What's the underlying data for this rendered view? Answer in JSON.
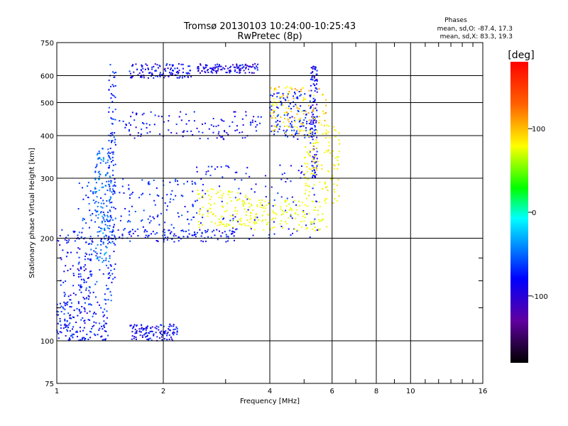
{
  "chart_data": {
    "type": "scatter",
    "title": "Tromsø 20130103 10:24:00-10:25:43",
    "subtitle": "RwPretec (8p)",
    "xlabel": "Frequency [MHz]",
    "ylabel": "Stationary phase Virtual Height [km]",
    "x_scale": "log",
    "y_scale": "log",
    "xlim": [
      1,
      16
    ],
    "ylim": [
      75,
      750
    ],
    "x_ticks": [
      1,
      2,
      4,
      6,
      8,
      10,
      16
    ],
    "x_tick_labels": [
      "1",
      "2",
      "4",
      "6",
      "8",
      "10",
      "16"
    ],
    "x_minor_ticks": [
      3,
      5,
      7,
      9,
      11,
      12,
      13,
      14,
      15
    ],
    "y_ticks": [
      75,
      100,
      200,
      300,
      400,
      500,
      600,
      750
    ],
    "y_tick_labels": [
      "75",
      "100",
      "200",
      "300",
      "400",
      "500",
      "600",
      "750"
    ],
    "y_minor_ticks": [
      125,
      150,
      175
    ],
    "grid": true,
    "stats_header": "Phases",
    "stats_lines": [
      "mean, sd,O: -87.4, 17.3",
      "mean, sd,X: 83.3, 19.3"
    ],
    "colorbar": {
      "label": "[deg]",
      "min": -180,
      "max": 180,
      "tick_values": [
        100,
        0,
        -100
      ],
      "tick_labels": [
        "100",
        "0",
        "-100"
      ]
    },
    "colors": {
      "background": "#ffffff",
      "axes": "#000000",
      "grid": "#000000"
    },
    "series": [
      {
        "x": [
          [
            1.0,
            1.25
          ]
        ],
        "y": [
          [
            100,
            200
          ]
        ],
        "phase": -100
      },
      {
        "x": [
          [
            1.15,
            1.45
          ]
        ],
        "y": [
          [
            130,
            300
          ]
        ],
        "phase": -80
      },
      {
        "x": [
          [
            1.4,
            1.47
          ]
        ],
        "y": [
          [
            150,
            650
          ]
        ],
        "phase": -85
      },
      {
        "x": [
          [
            1.28,
            1.42
          ]
        ],
        "y": [
          [
            170,
            370
          ]
        ],
        "phase": -60
      },
      {
        "x": [
          [
            1.5,
            2.5
          ]
        ],
        "y": [
          [
            200,
            300
          ]
        ],
        "phase": -85
      },
      {
        "x": [
          [
            1.0,
            3.6
          ]
        ],
        "y": [
          [
            195,
            212
          ]
        ],
        "phase": -95
      },
      {
        "x": [
          [
            2.4,
            5.5
          ]
        ],
        "y": [
          [
            200,
            330
          ]
        ],
        "phase": -95
      },
      {
        "x": [
          [
            5.2,
            5.45
          ]
        ],
        "y": [
          [
            300,
            650
          ]
        ],
        "phase": -100
      },
      {
        "x": [
          [
            4.0,
            5.4
          ]
        ],
        "y": [
          [
            390,
            540
          ]
        ],
        "phase": -90
      },
      {
        "x": [
          [
            1.5,
            3.8
          ]
        ],
        "y": [
          [
            390,
            470
          ]
        ],
        "phase": -100
      },
      {
        "x": [
          [
            1.6,
            2.4
          ]
        ],
        "y": [
          [
            590,
            650
          ]
        ],
        "phase": -100
      },
      {
        "x": [
          [
            2.5,
            3.7
          ]
        ],
        "y": [
          [
            610,
            650
          ]
        ],
        "phase": -105
      },
      {
        "x": [
          [
            2.5,
            3.6
          ]
        ],
        "y": [
          [
            215,
            280
          ]
        ],
        "phase": 90
      },
      {
        "x": [
          [
            3.6,
            5.8
          ]
        ],
        "y": [
          [
            210,
            260
          ]
        ],
        "phase": 85
      },
      {
        "x": [
          [
            5.0,
            6.3
          ]
        ],
        "y": [
          [
            250,
            430
          ]
        ],
        "phase": 95
      },
      {
        "x": [
          [
            4.0,
            5.8
          ]
        ],
        "y": [
          [
            400,
            560
          ]
        ],
        "phase": 110
      },
      {
        "x": [
          [
            1.0,
            1.4
          ]
        ],
        "y": [
          [
            100,
            130
          ]
        ],
        "phase": -90
      },
      {
        "x": [
          [
            1.6,
            2.2
          ]
        ],
        "y": [
          [
            100,
            112
          ]
        ],
        "phase": -100
      }
    ]
  }
}
